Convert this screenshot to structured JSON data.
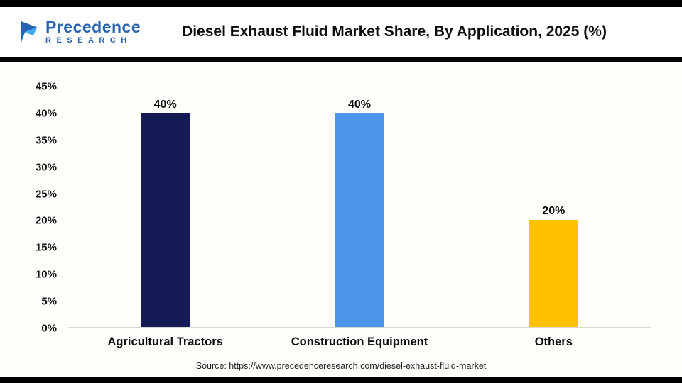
{
  "page": {
    "title": "Diesel Exhaust Fluid Market Share, By Application, 2025 (%)",
    "source": "Source: https://www.precedenceresearch.com/diesel-exhaust-fluid-market",
    "logo": {
      "text": "Precedence",
      "subtext": "RESEARCH",
      "brand_color": "#2763ae"
    }
  },
  "chart_data": {
    "type": "bar",
    "title": "Diesel Exhaust Fluid Market Share, By Application, 2025 (%)",
    "categories": [
      "Agricultural Tractors",
      "Construction Equipment",
      "Others"
    ],
    "values": [
      40,
      40,
      20
    ],
    "value_labels": [
      "40%",
      "40%",
      "20%"
    ],
    "bar_colors": [
      "#141a53",
      "#4e94e9",
      "#ffc000"
    ],
    "xlabel": "",
    "ylabel": "",
    "ylim": [
      0,
      45
    ],
    "yticks": [
      0,
      5,
      10,
      15,
      20,
      25,
      30,
      35,
      40,
      45
    ],
    "ytick_suffix": "%",
    "grid": false,
    "legend": false
  }
}
